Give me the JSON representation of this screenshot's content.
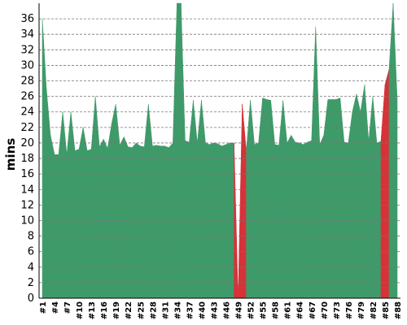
{
  "chart_data": {
    "type": "area",
    "y_label": "mins",
    "categories": [
      "#1",
      null,
      null,
      "#4",
      null,
      null,
      "#7",
      null,
      null,
      "#10",
      null,
      null,
      "#13",
      null,
      null,
      "#16",
      null,
      null,
      "#19",
      null,
      null,
      "#22",
      null,
      null,
      "#25",
      null,
      null,
      "#28",
      null,
      null,
      "#31",
      null,
      null,
      "#34",
      null,
      null,
      "#37",
      null,
      null,
      "#40",
      null,
      null,
      "#43",
      null,
      null,
      "#46",
      null,
      null,
      "#49",
      null,
      null,
      "#52",
      null,
      null,
      "#55",
      null,
      null,
      "#58",
      null,
      null,
      "#61",
      null,
      null,
      "#64",
      null,
      null,
      "#67",
      null,
      null,
      "#70",
      null,
      null,
      "#73",
      null,
      null,
      "#76",
      null,
      null,
      "#79",
      null,
      null,
      "#82",
      null,
      null,
      "#85",
      null,
      null,
      "#88"
    ],
    "values": [
      36,
      27,
      21,
      18.5,
      18.5,
      24,
      18.5,
      24,
      19,
      19.2,
      22,
      19,
      19.2,
      26,
      19.5,
      20.5,
      19.3,
      22.5,
      25,
      19.7,
      20.8,
      19.5,
      19.4,
      20,
      19.6,
      19.5,
      25,
      19.6,
      19.7,
      19.6,
      19.6,
      19.4,
      20,
      38,
      38,
      20.3,
      20.1,
      25.5,
      20,
      25.5,
      20,
      19.8,
      20,
      19.9,
      19.6,
      19.8,
      20,
      20,
      0,
      25,
      19,
      25.5,
      19.8,
      20,
      25.8,
      25.6,
      25.5,
      19.8,
      19.7,
      25.5,
      20,
      21,
      20.1,
      20,
      19.8,
      20.1,
      20.3,
      35,
      19.8,
      21,
      25.6,
      25.6,
      25.6,
      25.8,
      20.1,
      20,
      24,
      26.3,
      24,
      27.5,
      20.2,
      26,
      20,
      20.2,
      27.5,
      29.5,
      38,
      25.6
    ],
    "failed": [
      false,
      false,
      false,
      false,
      false,
      false,
      false,
      false,
      false,
      false,
      false,
      false,
      false,
      false,
      false,
      false,
      false,
      false,
      false,
      false,
      false,
      false,
      false,
      false,
      false,
      false,
      false,
      false,
      false,
      false,
      false,
      false,
      false,
      false,
      false,
      false,
      false,
      false,
      false,
      false,
      false,
      false,
      false,
      false,
      false,
      false,
      false,
      false,
      true,
      true,
      false,
      false,
      false,
      false,
      false,
      false,
      false,
      false,
      false,
      false,
      false,
      false,
      false,
      false,
      false,
      false,
      false,
      false,
      false,
      false,
      false,
      false,
      false,
      false,
      false,
      false,
      false,
      false,
      false,
      false,
      false,
      false,
      false,
      false,
      true,
      false,
      false,
      false
    ],
    "color": "#3f9a69",
    "failed_color": "#d63238",
    "ylim": [
      0,
      38
    ],
    "yticks": [
      0,
      2,
      4,
      6,
      8,
      10,
      12,
      14,
      16,
      18,
      20,
      22,
      24,
      26,
      28,
      30,
      32,
      34,
      36
    ],
    "grid": true
  }
}
